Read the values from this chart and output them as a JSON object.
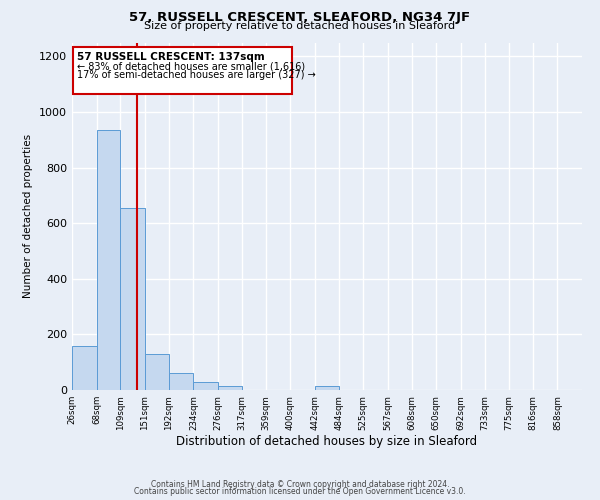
{
  "title": "57, RUSSELL CRESCENT, SLEAFORD, NG34 7JF",
  "subtitle": "Size of property relative to detached houses in Sleaford",
  "xlabel": "Distribution of detached houses by size in Sleaford",
  "ylabel": "Number of detached properties",
  "footer_line1": "Contains HM Land Registry data © Crown copyright and database right 2024.",
  "footer_line2": "Contains public sector information licensed under the Open Government Licence v3.0.",
  "bar_labels": [
    "26sqm",
    "68sqm",
    "109sqm",
    "151sqm",
    "192sqm",
    "234sqm",
    "276sqm",
    "317sqm",
    "359sqm",
    "400sqm",
    "442sqm",
    "484sqm",
    "525sqm",
    "567sqm",
    "608sqm",
    "650sqm",
    "692sqm",
    "733sqm",
    "775sqm",
    "816sqm",
    "858sqm"
  ],
  "bar_values": [
    160,
    935,
    655,
    130,
    62,
    27,
    13,
    0,
    0,
    0,
    13,
    0,
    0,
    0,
    0,
    0,
    0,
    0,
    0,
    0,
    0
  ],
  "bar_color": "#c5d8ef",
  "bar_edge_color": "#5b9bd5",
  "bg_color": "#e8eef7",
  "grid_color": "#ffffff",
  "marker_line_color": "#cc0000",
  "annotation_title": "57 RUSSELL CRESCENT: 137sqm",
  "annotation_line1": "← 83% of detached houses are smaller (1,616)",
  "annotation_line2": "17% of semi-detached houses are larger (327) →",
  "annotation_box_color": "#ffffff",
  "annotation_box_edge": "#cc0000",
  "ylim": [
    0,
    1250
  ],
  "yticks": [
    0,
    200,
    400,
    600,
    800,
    1000,
    1200
  ],
  "tick_vals": [
    26,
    68,
    109,
    151,
    192,
    234,
    276,
    317,
    359,
    400,
    442,
    484,
    525,
    567,
    608,
    650,
    692,
    733,
    775,
    816,
    858
  ]
}
